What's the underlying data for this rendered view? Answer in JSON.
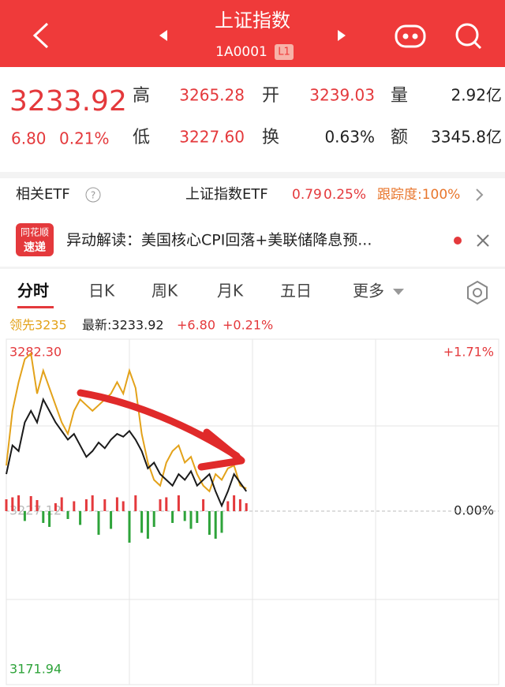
{
  "header": {
    "title": "上证指数",
    "code": "1A0001",
    "badge": "L1"
  },
  "quote": {
    "price": "3233.92",
    "change": "6.80",
    "change_pct": "0.21%",
    "fields": [
      {
        "label": "高",
        "value": "3265.28"
      },
      {
        "label": "开",
        "value": "3239.03"
      },
      {
        "label": "量",
        "value": "2.92亿"
      },
      {
        "label": "低",
        "value": "3227.60"
      },
      {
        "label": "换",
        "value": "0.63%"
      },
      {
        "label": "额",
        "value": "3345.8亿"
      }
    ]
  },
  "etf": {
    "label": "相关ETF",
    "name": "上证指数ETF",
    "price": "0.79",
    "pct": "0.25%",
    "tracking": "跟踪度:100%"
  },
  "news": {
    "logo_top": "同花顺",
    "logo_bottom": "速递",
    "text": "异动解读：美国核心CPI回落+美联储降息预..."
  },
  "tabs": [
    "分时",
    "日K",
    "周K",
    "月K",
    "五日",
    "更多"
  ],
  "chart_data": {
    "type": "line",
    "legend": {
      "leading": "领先3235",
      "latest": "最新:3233.92",
      "change": "+6.80",
      "change_pct": "+0.21%"
    },
    "xlim": [
      0,
      240
    ],
    "ylim": [
      3171.94,
      3282.3
    ],
    "yticks": [
      {
        "value": 3282.3,
        "label": "3282.30"
      },
      3227.12,
      3171.94
    ],
    "y2lim": [
      -1.71,
      1.71
    ],
    "y2ticks": [
      {
        "value": 1.71,
        "label": "+1.71%"
      },
      {
        "value": 0,
        "label": "0.00%"
      }
    ],
    "x": [
      0,
      3,
      6,
      9,
      12,
      15,
      18,
      21,
      24,
      27,
      30,
      33,
      36,
      39,
      42,
      45,
      48,
      51,
      54,
      57,
      60,
      63,
      66,
      69,
      72,
      75,
      78,
      81,
      84,
      87,
      90,
      93,
      96,
      99,
      102,
      105,
      108,
      111,
      114,
      117
    ],
    "series": [
      {
        "name": "最新",
        "color": "#1a1a1a",
        "values": [
          3240,
          3250,
          3248,
          3258,
          3262,
          3258,
          3266,
          3262,
          3258,
          3255,
          3252,
          3254,
          3250,
          3246,
          3248,
          3251,
          3249,
          3252,
          3254,
          3253,
          3255,
          3252,
          3248,
          3242,
          3244,
          3240,
          3238,
          3236,
          3240,
          3238,
          3241,
          3236,
          3238,
          3240,
          3234,
          3229,
          3234,
          3240,
          3237,
          3234
        ]
      },
      {
        "name": "领先",
        "color": "#e3a21a",
        "values": [
          3243,
          3262,
          3272,
          3280,
          3282,
          3268,
          3276,
          3270,
          3264,
          3258,
          3254,
          3262,
          3266,
          3264,
          3262,
          3264,
          3266,
          3268,
          3272,
          3268,
          3276,
          3270,
          3254,
          3244,
          3238,
          3236,
          3244,
          3248,
          3250,
          3244,
          3246,
          3240,
          3236,
          3234,
          3240,
          3238,
          3242,
          3243,
          3236,
          3235
        ]
      }
    ],
    "bars": {
      "lim": [
        -100,
        100
      ],
      "up_color": "#e4393c",
      "down_color": "#2ea33a",
      "values": [
        30,
        35,
        40,
        -25,
        38,
        28,
        -30,
        -40,
        20,
        35,
        -20,
        25,
        -35,
        30,
        40,
        -60,
        30,
        -45,
        35,
        25,
        -80,
        40,
        -55,
        -70,
        -40,
        30,
        35,
        -30,
        40,
        -25,
        -45,
        -30,
        30,
        -60,
        -70,
        -55,
        25,
        40,
        30,
        20
      ]
    }
  }
}
